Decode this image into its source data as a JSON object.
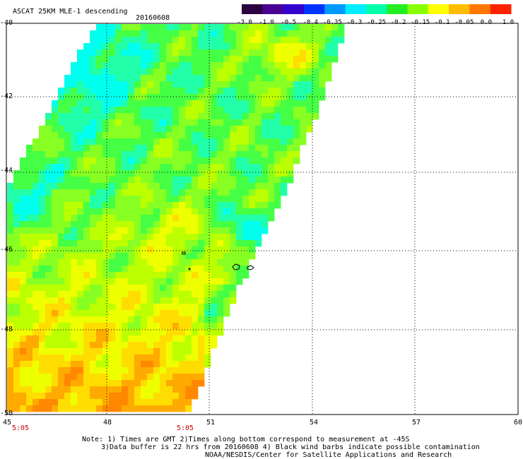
{
  "title": "ASCAT 25KM MLE-1 descending",
  "date": "20160608",
  "colorbar": {
    "labels": [
      "-3.0",
      "-1.0",
      "-0.5",
      "-0.4",
      "-0.35",
      "-0.3",
      "-0.25",
      "-0.2",
      "-0.15",
      "-0.1",
      "-0.05",
      "0.0",
      "1.0"
    ],
    "colors": [
      "#2a0040",
      "#4a0090",
      "#3300cc",
      "#0033ff",
      "#0099ff",
      "#00eeff",
      "#00ffaa",
      "#22ee22",
      "#88ff00",
      "#ffff00",
      "#ffbb00",
      "#ff7700",
      "#ff2200"
    ]
  },
  "y_axis": {
    "labels": [
      "-40",
      "-42",
      "-44",
      "-46",
      "-48",
      "-50"
    ]
  },
  "x_axis": {
    "labels": [
      "45",
      "48",
      "51",
      "54",
      "57",
      "60"
    ]
  },
  "times": [
    "5:05",
    "5:05"
  ],
  "notes": [
    "Note: 1) Times are GMT 2)Times along bottom correspond to measurement at -45S",
    "3)Data buffer is 22 hrs from 20160608 4) Black wind barbs indicate possible contamination",
    "NOAA/NESDIS/Center for Satellite Applications and Research"
  ],
  "map_colors": {
    "swath_palette": [
      "#00ffee",
      "#22ffaa",
      "#44ff44",
      "#88ff22",
      "#bbff00",
      "#eeff00",
      "#ffdd00",
      "#ffaa00",
      "#ff8800"
    ]
  }
}
